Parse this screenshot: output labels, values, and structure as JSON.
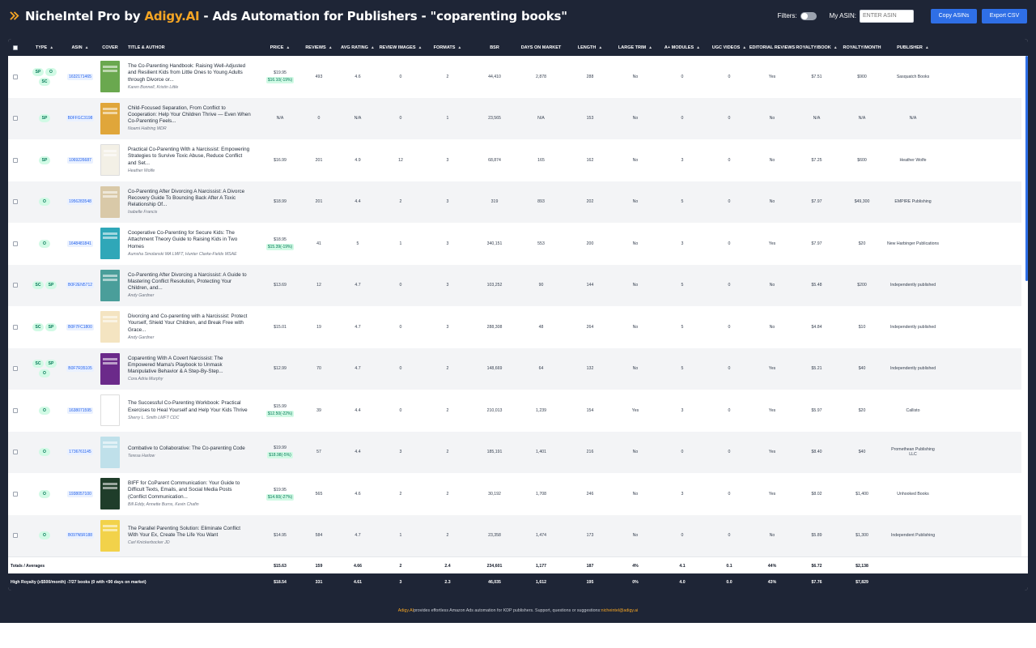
{
  "header": {
    "title_prefix": "NicheIntel Pro by ",
    "brand": "Adigy.AI",
    "title_suffix": " - Ads Automation for Publishers - \"coparenting books\"",
    "filters_label": "Filters:",
    "my_asin_label": "My ASIN:",
    "asin_placeholder": "ENTER ASIN",
    "copy_button": "Copy ASINs",
    "export_button": "Export CSV"
  },
  "columns": [
    "TYPE",
    "ASIN",
    "COVER",
    "TITLE & AUTHOR",
    "PRICE",
    "REVIEWS",
    "AVG RATING",
    "REVIEW IMAGES",
    "FORMATS",
    "BSR",
    "DAYS ON MARKET",
    "LENGTH",
    "LARGE TRIM",
    "A+ MODULES",
    "UGC VIDEOS",
    "EDITORIAL REVIEWS",
    "ROYALTY/BOOK",
    "ROYALTY/MONTH",
    "PUBLISHER"
  ],
  "rows": [
    {
      "types": [
        "SP",
        "O",
        "SC"
      ],
      "asin": "1632171465",
      "cover": "#6aa84f",
      "title": "The Co-Parenting Handbook: Raising Well-Adjusted and Resilient Kids from Little Ones to Young Adults through Divorce or...",
      "author": "Karen Bonnell, Kristin Little",
      "price": "$19.95",
      "disc": "$16.10(-19%)",
      "reviews": "493",
      "rating": "4.6",
      "images": "0",
      "formats": "2",
      "bsr": "44,410",
      "days": "2,878",
      "length": "288",
      "trim": "No",
      "aplus": "0",
      "ugc": "0",
      "editorial": "Yes",
      "rbook": "$7.51",
      "rmonth": "$900",
      "publisher": "Sasquatch Books"
    },
    {
      "types": [
        "SP"
      ],
      "asin": "B0FFGC3198",
      "cover": "#e0a63a",
      "title": "Child-Focused Separation, From Conflict to Cooperation: Help Your Children Thrive — Even When Co-Parenting Feels...",
      "author": "Noami Haltring MDR",
      "price": "N/A",
      "disc": "",
      "reviews": "0",
      "rating": "N/A",
      "images": "0",
      "formats": "1",
      "bsr": "23,565",
      "days": "N/A",
      "length": "153",
      "trim": "No",
      "aplus": "0",
      "ugc": "0",
      "editorial": "No",
      "rbook": "N/A",
      "rmonth": "N/A",
      "publisher": "N/A"
    },
    {
      "types": [
        "SP"
      ],
      "asin": "1069226687",
      "cover": "#f3f0e6",
      "title": "Practical Co-Parenting With a Narcissist: Empowering Strategies to Survive Toxic Abuse, Reduce Conflict and Set...",
      "author": "Heather Wolfe",
      "price": "$16.99",
      "disc": "",
      "reviews": "201",
      "rating": "4.9",
      "images": "12",
      "formats": "3",
      "bsr": "68,874",
      "days": "165",
      "length": "162",
      "trim": "No",
      "aplus": "3",
      "ugc": "0",
      "editorial": "No",
      "rbook": "$7.25",
      "rmonth": "$600",
      "publisher": "Heather Wolfe"
    },
    {
      "types": [
        "O"
      ],
      "asin": "1956283548",
      "cover": "#d9c9a8",
      "title": "Co-Parenting After Divorcing A Narcissist: A Divorce Recovery Guide To Bouncing Back After A Toxic Relationship Of...",
      "author": "Isabelle Francis",
      "price": "$18.99",
      "disc": "",
      "reviews": "201",
      "rating": "4.4",
      "images": "2",
      "formats": "3",
      "bsr": "319",
      "days": "893",
      "length": "202",
      "trim": "No",
      "aplus": "5",
      "ugc": "0",
      "editorial": "No",
      "rbook": "$7.97",
      "rmonth": "$49,300",
      "publisher": "EMPIRE Publishing"
    },
    {
      "types": [
        "O"
      ],
      "asin": "1648481841",
      "cover": "#2fa7b8",
      "title": "Cooperative Co-Parenting for Secure Kids: The Attachment Theory Guide to Raising Kids in Two Homes",
      "author": "Aumsha Smolanski MA LMFT, Hunter Clarke-Fields MSAE",
      "price": "$18.95",
      "disc": "$15.39(-19%)",
      "reviews": "41",
      "rating": "5",
      "images": "1",
      "formats": "3",
      "bsr": "340,151",
      "days": "553",
      "length": "200",
      "trim": "No",
      "aplus": "3",
      "ugc": "0",
      "editorial": "Yes",
      "rbook": "$7.97",
      "rmonth": "$20",
      "publisher": "New Harbinger Publications"
    },
    {
      "types": [
        "SC",
        "SP"
      ],
      "asin": "B0F2EN5712",
      "cover": "#4a9e9a",
      "title": "Co-Parenting After Divorcing a Narcissist: A Guide to Mastering Conflict Resolution, Protecting Your Children, and...",
      "author": "Andy Gardner",
      "price": "$13.69",
      "disc": "",
      "reviews": "12",
      "rating": "4.7",
      "images": "0",
      "formats": "3",
      "bsr": "103,252",
      "days": "90",
      "length": "144",
      "trim": "No",
      "aplus": "5",
      "ugc": "0",
      "editorial": "No",
      "rbook": "$5.48",
      "rmonth": "$200",
      "publisher": "Independently published"
    },
    {
      "types": [
        "SC",
        "SP"
      ],
      "asin": "B0F7FC1800",
      "cover": "#f4e4c1",
      "title": "Divorcing and Co-parenting with a Narcissist: Protect Yourself, Shield Your Children, and Break Free with Grace...",
      "author": "Andy Gardner",
      "price": "$15.01",
      "disc": "",
      "reviews": "19",
      "rating": "4.7",
      "images": "0",
      "formats": "3",
      "bsr": "288,308",
      "days": "48",
      "length": "264",
      "trim": "No",
      "aplus": "5",
      "ugc": "0",
      "editorial": "No",
      "rbook": "$4.84",
      "rmonth": "$10",
      "publisher": "Independently published"
    },
    {
      "types": [
        "SC",
        "SP",
        "O"
      ],
      "asin": "B0F7R35105",
      "cover": "#6b2a8a",
      "title": "Coparenting With A Covert Narcissist: The Empowered Mama's Playbook to Unmask Manipulative Behavior & A Step-By-Step...",
      "author": "Cora Adria Murphy",
      "price": "$12.99",
      "disc": "",
      "reviews": "70",
      "rating": "4.7",
      "images": "0",
      "formats": "2",
      "bsr": "148,669",
      "days": "64",
      "length": "132",
      "trim": "No",
      "aplus": "5",
      "ugc": "0",
      "editorial": "Yes",
      "rbook": "$5.21",
      "rmonth": "$40",
      "publisher": "Independently published"
    },
    {
      "types": [
        "O"
      ],
      "asin": "1638071595",
      "cover": "#ffffff",
      "title": "The Successful Co-Parenting Workbook: Practical Exercises to Heal Yourself and Help Your Kids Thrive",
      "author": "Sherry L. Smith LMFT CDC",
      "price": "$15.99",
      "disc": "$12.50(-22%)",
      "reviews": "39",
      "rating": "4.4",
      "images": "0",
      "formats": "2",
      "bsr": "210,013",
      "days": "1,239",
      "length": "154",
      "trim": "Yes",
      "aplus": "3",
      "ugc": "0",
      "editorial": "Yes",
      "rbook": "$5.97",
      "rmonth": "$20",
      "publisher": "Callisto"
    },
    {
      "types": [
        "O"
      ],
      "asin": "1736761145",
      "cover": "#bfe0ea",
      "title": "Combative to Collaborative: The Co-parenting Code",
      "author": "Teresa Harlow",
      "price": "$19.99",
      "disc": "$18.98(-5%)",
      "reviews": "57",
      "rating": "4.4",
      "images": "3",
      "formats": "2",
      "bsr": "185,191",
      "days": "1,401",
      "length": "216",
      "trim": "No",
      "aplus": "0",
      "ugc": "0",
      "editorial": "Yes",
      "rbook": "$8.40",
      "rmonth": "$40",
      "publisher": "Promethean Publishing LLC"
    },
    {
      "types": [
        "O"
      ],
      "asin": "1938057100",
      "cover": "#1f3d2a",
      "title": "BIFF for CoParent Communication: Your Guide to Difficult Texts, Emails, and Social Media Posts (Conflict Communication...",
      "author": "Bill Eddy, Annette Burns, Kevin Chafin",
      "price": "$19.95",
      "disc": "$14.60(-27%)",
      "reviews": "565",
      "rating": "4.6",
      "images": "2",
      "formats": "2",
      "bsr": "30,192",
      "days": "1,708",
      "length": "246",
      "trim": "No",
      "aplus": "3",
      "ugc": "0",
      "editorial": "Yes",
      "rbook": "$8.02",
      "rmonth": "$1,400",
      "publisher": "Unhooked Books"
    },
    {
      "types": [
        "O"
      ],
      "asin": "B097N5R188",
      "cover": "#f2d24a",
      "title": "The Parallel Parenting Solution: Eliminate Conflict With Your Ex, Create The Life You Want",
      "author": "Carl Knickerbocker JD",
      "price": "$14.95",
      "disc": "",
      "reviews": "584",
      "rating": "4.7",
      "images": "1",
      "formats": "2",
      "bsr": "23,358",
      "days": "1,474",
      "length": "173",
      "trim": "No",
      "aplus": "0",
      "ugc": "0",
      "editorial": "No",
      "rbook": "$5.89",
      "rmonth": "$1,300",
      "publisher": "Independent Publishing"
    }
  ],
  "totals": {
    "label": "Totals / Averages",
    "price": "$15.63",
    "reviews": "159",
    "rating": "4.66",
    "images": "2",
    "formats": "2.4",
    "bsr": "234,601",
    "days": "1,177",
    "length": "187",
    "trim": "4%",
    "aplus": "4.1",
    "ugc": "0.1",
    "editorial": "44%",
    "rbook": "$6.72",
    "rmonth": "$2,138"
  },
  "high": {
    "label": "High Royalty (≥$500/month) -7/27 books (0 with <90 days on market)",
    "price": "$18.54",
    "reviews": "331",
    "rating": "4.61",
    "images": "3",
    "formats": "2.3",
    "bsr": "46,035",
    "days": "1,612",
    "length": "195",
    "trim": "0%",
    "aplus": "4.0",
    "ugc": "0.0",
    "editorial": "43%",
    "rbook": "$7.76",
    "rmonth": "$7,829"
  },
  "footer": {
    "brand": "Adigy.AI",
    "text": " provides effortless Amazon Ads automation for KDP publishers. Support, questions or suggestions: ",
    "email": "nicheintel@adigy.ai"
  },
  "colors": {
    "navy": "#1e2536",
    "accent": "#f5a524",
    "blue": "#2f6fe6"
  }
}
